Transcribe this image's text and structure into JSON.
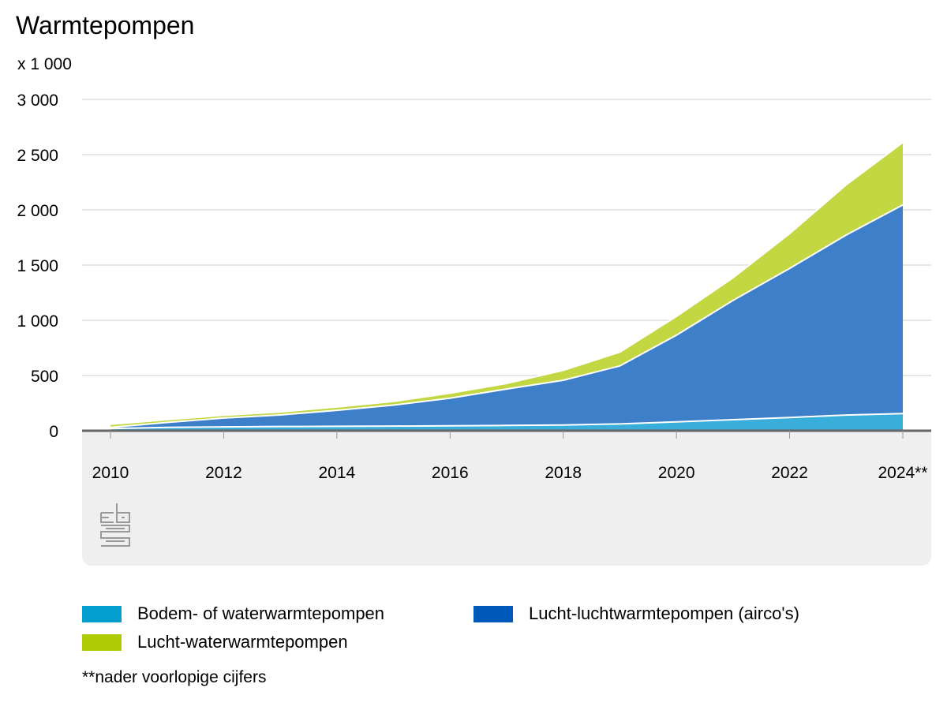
{
  "title": "Warmtepompen",
  "unit": "x 1 000",
  "footnote": "**nader voorlopige cijfers",
  "logo_name": "cbs-logo",
  "colors": {
    "bodem": "#39aedb",
    "lucht_lucht": "#3d80c9",
    "lucht_water": "#c3d743",
    "legend_bodem": "#039fd0",
    "legend_lucht_lucht": "#0058b8",
    "legend_lucht_water": "#afcb05",
    "grid": "#cccccc",
    "baseline": "#666666",
    "axis_bg": "#efefef"
  },
  "chart_data": {
    "type": "area",
    "stacked": true,
    "x": [
      "2010",
      "2011",
      "2012",
      "2013",
      "2014",
      "2015",
      "2016",
      "2017",
      "2018",
      "2019",
      "2020",
      "2021",
      "2022",
      "2023",
      "2024**"
    ],
    "x_tick_labels": [
      "2010",
      "2012",
      "2014",
      "2016",
      "2018",
      "2020",
      "2022",
      "2024**"
    ],
    "y_tick_labels": [
      "0",
      "500",
      "1 000",
      "1 500",
      "2 000",
      "2 500",
      "3 000"
    ],
    "ylim": [
      0,
      3000
    ],
    "grid": true,
    "legend_position": "bottom",
    "series": [
      {
        "name": "Bodem- of waterwarmtepompen",
        "key": "bodem",
        "values": [
          20,
          30,
          35,
          38,
          40,
          42,
          45,
          48,
          52,
          62,
          80,
          100,
          120,
          142,
          155
        ]
      },
      {
        "name": "Lucht-luchtwarmtepompen (airco's)",
        "key": "lucht_lucht",
        "values": [
          10,
          45,
          80,
          105,
          145,
          190,
          250,
          330,
          405,
          525,
          785,
          1080,
          1350,
          1630,
          1890
        ]
      },
      {
        "name": "Lucht-waterwarmtepompen",
        "key": "lucht_water",
        "values": [
          28,
          25,
          25,
          27,
          30,
          33,
          45,
          50,
          90,
          125,
          170,
          205,
          315,
          455,
          565
        ]
      }
    ]
  }
}
